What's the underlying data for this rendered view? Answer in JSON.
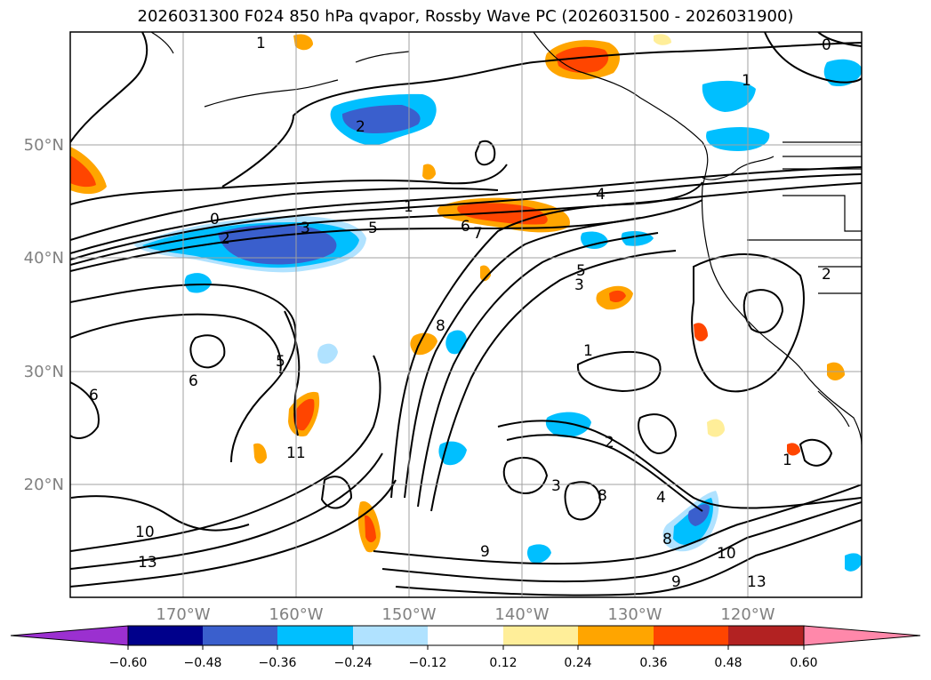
{
  "title": "2026031300 F024 850 hPa qvapor, Rossby Wave PC (2026031500 - 2026031900)",
  "lat_labels": [
    "50°N",
    "40°N",
    "30°N",
    "20°N"
  ],
  "lon_labels": [
    "170°W",
    "160°W",
    "150°W",
    "140°W",
    "130°W",
    "120°W"
  ],
  "colorbar": {
    "ticks": [
      "−0.60",
      "−0.48",
      "−0.36",
      "−0.24",
      "−0.12",
      "0.12",
      "0.24",
      "0.36",
      "0.48",
      "0.60"
    ],
    "colors": [
      "#9b30d0",
      "#00008b",
      "#3a5fcd",
      "#00bfff",
      "#b0e2ff",
      "#ffffff",
      "#ffee99",
      "#ffa500",
      "#ff4500",
      "#b22222",
      "#ff88aa"
    ]
  },
  "contour_labels": [
    "0",
    "1",
    "2",
    "3",
    "4",
    "5",
    "6",
    "7",
    "8",
    "9",
    "10",
    "11",
    "13",
    "1",
    "2",
    "3",
    "5",
    "6",
    "8",
    "10",
    "13",
    "1",
    "2",
    "1",
    "0",
    "5",
    "6",
    "2",
    "3",
    "4",
    "1",
    "8",
    "9"
  ],
  "colors": {
    "negative_strong": "#3a5fcd",
    "negative_mid": "#00bfff",
    "negative_weak": "#b0e2ff",
    "positive_weak": "#ffee99",
    "positive_mid": "#ffa500",
    "positive_strong": "#ff4500",
    "contour": "#000000",
    "grid": "#a0a0a0",
    "tick_label": "#808080"
  }
}
